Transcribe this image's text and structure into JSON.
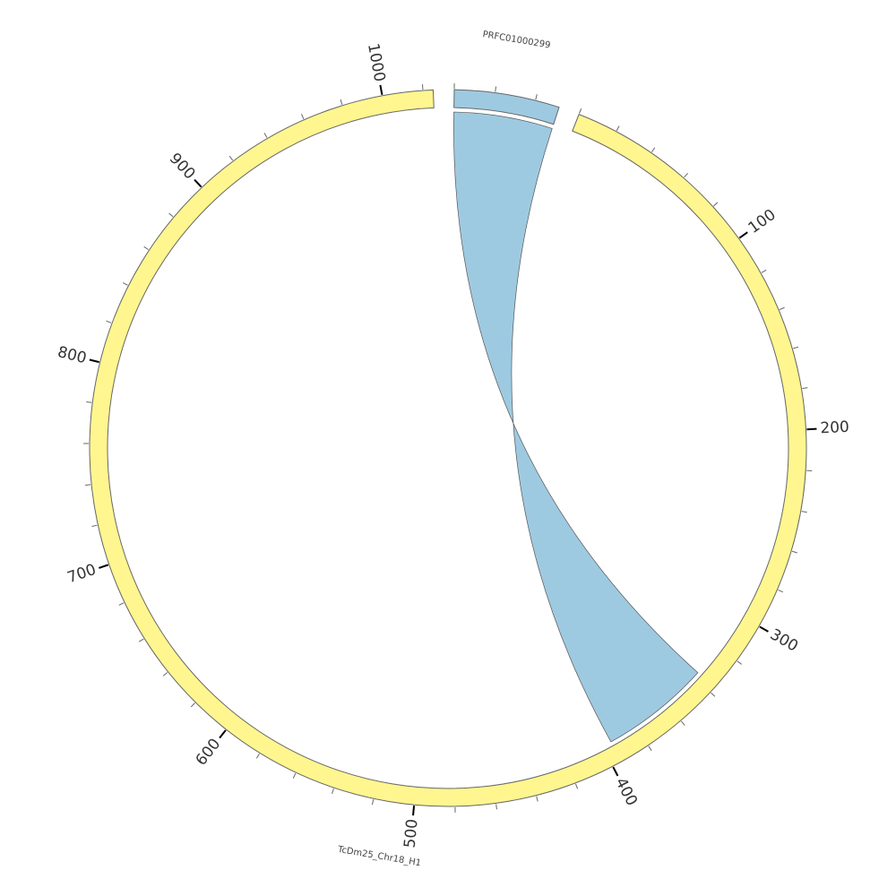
{
  "chart_data": {
    "type": "circos",
    "segments": [
      {
        "name": "PRFC01000299",
        "length": 52,
        "color": "#9ecae1"
      },
      {
        "name": "TcDm25_Chr18_H1",
        "length": 1025,
        "color": "#fff68f",
        "ticks": [
          100,
          200,
          300,
          400,
          500,
          600,
          700,
          800,
          900,
          1000
        ]
      }
    ],
    "minor_tick_interval": 20,
    "links": [
      {
        "source": {
          "segment": 0,
          "start": 0,
          "end": 52
        },
        "target": {
          "segment": 1,
          "start": 395,
          "end": 337
        },
        "color": "#9ecae1"
      }
    ]
  }
}
